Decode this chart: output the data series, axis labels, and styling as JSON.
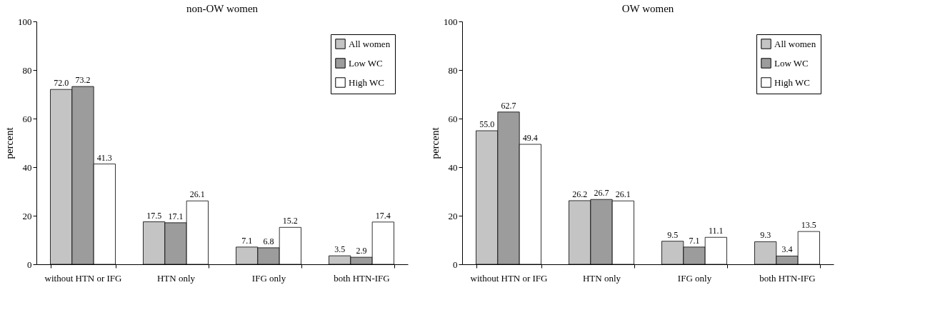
{
  "chart_data": [
    {
      "type": "bar",
      "title": "non-OW women",
      "ylabel": "percent",
      "categories": [
        "without HTN or IFG",
        "HTN only",
        "IFG only",
        "both HTN-IFG"
      ],
      "ylim": [
        0,
        100
      ],
      "yticks": [
        0,
        20,
        40,
        60,
        80,
        100
      ],
      "grid": false,
      "legend": "top right",
      "series": [
        {
          "name": "All women",
          "color": "#c4c4c4",
          "values": [
            72.0,
            17.5,
            7.1,
            3.5
          ],
          "value_labels": [
            "72.0",
            "17.5",
            "7.1",
            "3.5"
          ]
        },
        {
          "name": "Low WC",
          "color": "#9c9c9c",
          "values": [
            73.2,
            17.1,
            6.8,
            2.9
          ],
          "value_labels": [
            "73.2",
            "17.1",
            "6.8",
            "2.9"
          ]
        },
        {
          "name": "High WC",
          "color": "#ffffff",
          "values": [
            41.3,
            26.1,
            15.2,
            17.4
          ],
          "value_labels": [
            "41.3",
            "26.1",
            "15.2",
            "17.4"
          ]
        }
      ]
    },
    {
      "type": "bar",
      "title": "OW women",
      "ylabel": "percent",
      "categories": [
        "without HTN or IFG",
        "HTN only",
        "IFG only",
        "both HTN-IFG"
      ],
      "ylim": [
        0,
        100
      ],
      "yticks": [
        0,
        20,
        40,
        60,
        80,
        100
      ],
      "grid": false,
      "legend": "top right",
      "series": [
        {
          "name": "All women",
          "color": "#c4c4c4",
          "values": [
            55.0,
            26.2,
            9.5,
            9.3
          ],
          "value_labels": [
            "55.0",
            "26.2",
            "9.5",
            "9.3"
          ]
        },
        {
          "name": "Low WC",
          "color": "#9c9c9c",
          "values": [
            62.7,
            26.7,
            7.1,
            3.4
          ],
          "value_labels": [
            "62.7",
            "26.7",
            "7.1",
            "3.4"
          ]
        },
        {
          "name": "High WC",
          "color": "#ffffff",
          "values": [
            49.4,
            26.1,
            11.1,
            13.5
          ],
          "value_labels": [
            "49.4",
            "26.1",
            "11.1",
            "13.5"
          ]
        }
      ]
    }
  ]
}
